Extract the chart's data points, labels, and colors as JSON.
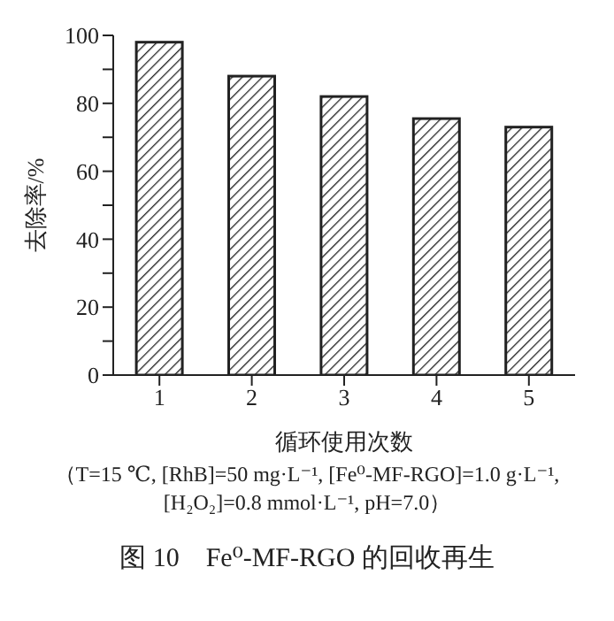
{
  "chart_data": {
    "type": "bar",
    "title": "图 10　Fe⁰-MF-RGO 的回收再生",
    "xlabel": "循环使用次数",
    "ylabel": "去除率/%",
    "categories": [
      "1",
      "2",
      "3",
      "4",
      "5"
    ],
    "values": [
      98,
      88,
      82,
      75.5,
      73
    ],
    "color": "#222222",
    "ylim": [
      0,
      100
    ],
    "yticks": [
      0,
      {
        "value": 10,
        "label": null
      },
      20,
      {
        "value": 30,
        "label": null
      },
      40,
      {
        "value": 50,
        "label": null
      },
      60,
      {
        "value": 70,
        "label": null
      },
      80,
      {
        "value": 90,
        "label": null
      },
      100
    ],
    "annotations": [
      "（T=15 ℃, [RhB]=50 mg·L⁻¹, [Fe⁰-MF-RGO]=1.0 g·L⁻¹,",
      "[H₂O₂]=0.8 mmol·L⁻¹, pH=7.0）"
    ],
    "grid": false
  }
}
